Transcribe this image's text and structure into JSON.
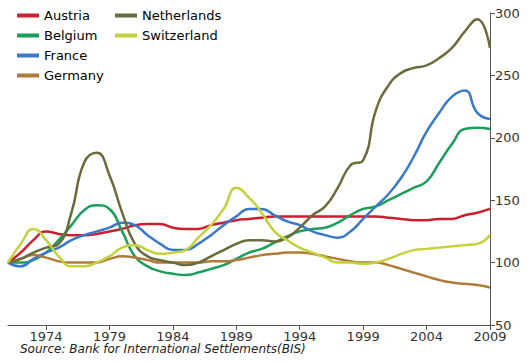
{
  "chart_data": {
    "type": "line",
    "source": "Source: Bank for International Settlements(BIS)",
    "xlim": [
      1971,
      2009
    ],
    "xticks": [
      1974,
      1979,
      1984,
      1989,
      1994,
      1999,
      2004,
      2009
    ],
    "ylim": [
      50,
      300
    ],
    "yticks": [
      50,
      100,
      150,
      200,
      250,
      300
    ],
    "grid": false,
    "legend": "top-left",
    "x": [
      1971,
      1972,
      1973,
      1974,
      1975,
      1976,
      1977,
      1978,
      1979,
      1980,
      1981,
      1982,
      1983,
      1984,
      1985,
      1986,
      1987,
      1988,
      1989,
      1990,
      1991,
      1992,
      1993,
      1994,
      1995,
      1996,
      1997,
      1998,
      1999,
      2000,
      2001,
      2002,
      2003,
      2004,
      2005,
      2006,
      2007,
      2008,
      2009
    ],
    "series": [
      {
        "name": "Austria",
        "color": "#c8202f",
        "values": [
          100,
          108,
          118,
          125,
          123,
          122,
          122,
          123,
          125,
          127,
          130,
          131,
          131,
          128,
          127,
          127,
          130,
          132,
          134,
          135,
          136,
          137,
          137,
          137,
          137,
          137,
          137,
          137,
          137,
          137,
          136,
          135,
          134,
          134,
          135,
          135,
          138,
          140,
          143
        ]
      },
      {
        "name": "Belgium",
        "color": "#1a9e5a",
        "values": [
          100,
          100,
          102,
          108,
          118,
          130,
          142,
          146,
          143,
          125,
          105,
          97,
          93,
          91,
          90,
          92,
          95,
          98,
          103,
          108,
          111,
          116,
          121,
          125,
          127,
          128,
          132,
          138,
          143,
          145,
          150,
          155,
          160,
          165,
          180,
          195,
          207,
          208,
          207
        ]
      },
      {
        "name": "France",
        "color": "#3a78c9",
        "values": [
          100,
          97,
          103,
          108,
          112,
          118,
          122,
          125,
          128,
          132,
          130,
          122,
          115,
          110,
          110,
          115,
          122,
          130,
          137,
          143,
          143,
          138,
          133,
          130,
          125,
          122,
          120,
          125,
          135,
          145,
          155,
          168,
          185,
          205,
          220,
          233,
          238,
          220,
          215
        ]
      },
      {
        "name": "Germany",
        "color": "#b07b3a",
        "values": [
          100,
          103,
          106,
          104,
          101,
          100,
          100,
          100,
          103,
          105,
          104,
          102,
          100,
          100,
          100,
          100,
          101,
          101,
          102,
          104,
          106,
          107,
          108,
          108,
          107,
          105,
          103,
          101,
          100,
          100,
          98,
          95,
          92,
          89,
          86,
          84,
          83,
          82,
          80
        ]
      },
      {
        "name": "Netherlands",
        "color": "#6b6b3c",
        "values": [
          100,
          103,
          108,
          112,
          115,
          140,
          180,
          188,
          170,
          140,
          115,
          105,
          102,
          100,
          98,
          100,
          105,
          110,
          115,
          118,
          118,
          117,
          120,
          128,
          138,
          145,
          160,
          178,
          182,
          222,
          242,
          252,
          256,
          258,
          264,
          272,
          285,
          295,
          272
        ]
      },
      {
        "name": "Switzerland",
        "color": "#c5d13a",
        "values": [
          100,
          115,
          127,
          118,
          105,
          97,
          97,
          100,
          105,
          112,
          114,
          110,
          107,
          108,
          110,
          120,
          130,
          143,
          160,
          152,
          140,
          125,
          118,
          112,
          108,
          104,
          100,
          100,
          99,
          100,
          103,
          107,
          110,
          111,
          112,
          113,
          114,
          115,
          122
        ]
      }
    ]
  }
}
